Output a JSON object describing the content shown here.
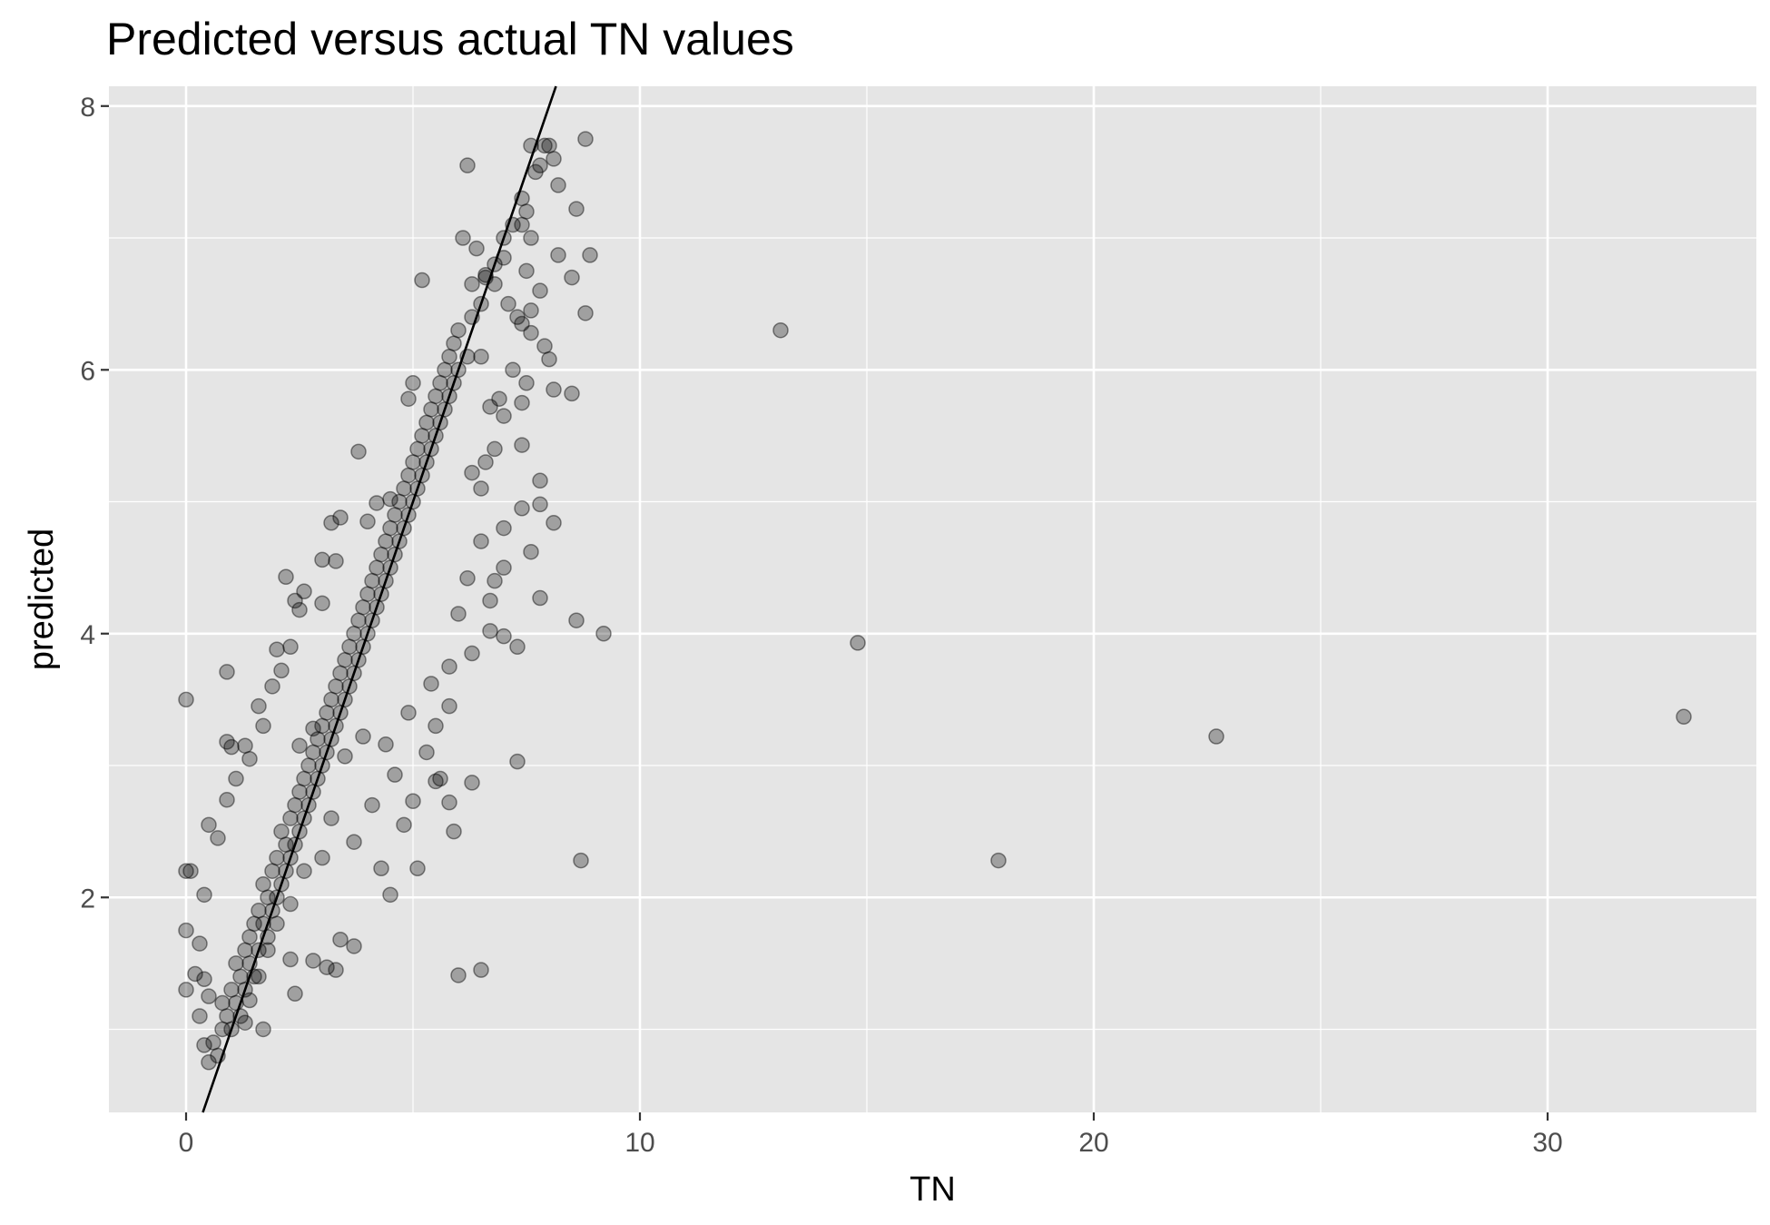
{
  "chart_data": {
    "type": "scatter",
    "title": "Predicted versus actual TN values",
    "xlabel": "TN",
    "ylabel": "predicted",
    "xlim": [
      -1.7,
      34.6
    ],
    "ylim": [
      0.37,
      8.15
    ],
    "x_ticks": [
      0,
      10,
      20,
      30
    ],
    "x_tick_labels": [
      "0",
      "10",
      "20",
      "30"
    ],
    "y_ticks": [
      2,
      4,
      6,
      8
    ],
    "y_tick_labels": [
      "2",
      "4",
      "6",
      "8"
    ],
    "x_minor_grid": [
      -5,
      5,
      15,
      25
    ],
    "y_minor_grid": [
      1,
      3,
      5,
      7
    ],
    "grid": true,
    "legend": "none",
    "colors": {
      "panel_background": "#e5e5e5",
      "gridline": "#ffffff",
      "point": "#000000",
      "reference_line": "#000000"
    },
    "point_alpha": 0.3,
    "reference_line": {
      "type": "identity",
      "points": [
        [
          0.37,
          0.37
        ],
        [
          8.15,
          8.15
        ]
      ]
    },
    "series": [
      {
        "values": [
          [
            0.6,
            0.9
          ],
          [
            0.7,
            0.8
          ],
          [
            0.8,
            1.0
          ],
          [
            0.8,
            1.2
          ],
          [
            0.9,
            1.1
          ],
          [
            1.0,
            1.0
          ],
          [
            1.0,
            1.3
          ],
          [
            1.1,
            1.2
          ],
          [
            1.1,
            1.5
          ],
          [
            1.2,
            1.1
          ],
          [
            1.2,
            1.4
          ],
          [
            1.3,
            1.3
          ],
          [
            1.3,
            1.6
          ],
          [
            1.4,
            1.5
          ],
          [
            1.4,
            1.7
          ],
          [
            1.5,
            1.4
          ],
          [
            1.5,
            1.8
          ],
          [
            1.6,
            1.6
          ],
          [
            1.6,
            1.9
          ],
          [
            1.7,
            1.8
          ],
          [
            1.7,
            2.1
          ],
          [
            1.8,
            1.7
          ],
          [
            1.8,
            2.0
          ],
          [
            1.9,
            1.9
          ],
          [
            1.9,
            2.2
          ],
          [
            2.0,
            2.0
          ],
          [
            2.0,
            2.3
          ],
          [
            2.1,
            2.1
          ],
          [
            2.1,
            2.5
          ],
          [
            2.2,
            2.2
          ],
          [
            2.2,
            2.4
          ],
          [
            2.3,
            2.3
          ],
          [
            2.3,
            2.6
          ],
          [
            2.4,
            2.4
          ],
          [
            2.4,
            2.7
          ],
          [
            2.5,
            2.5
          ],
          [
            2.5,
            2.8
          ],
          [
            2.6,
            2.6
          ],
          [
            2.6,
            2.9
          ],
          [
            2.7,
            2.7
          ],
          [
            2.7,
            3.0
          ],
          [
            2.8,
            2.8
          ],
          [
            2.8,
            3.1
          ],
          [
            2.9,
            2.9
          ],
          [
            2.9,
            3.2
          ],
          [
            3.0,
            3.0
          ],
          [
            3.0,
            3.3
          ],
          [
            3.1,
            3.1
          ],
          [
            3.1,
            3.4
          ],
          [
            3.2,
            3.2
          ],
          [
            3.2,
            3.5
          ],
          [
            3.3,
            3.3
          ],
          [
            3.3,
            3.6
          ],
          [
            3.4,
            3.4
          ],
          [
            3.4,
            3.7
          ],
          [
            3.5,
            3.5
          ],
          [
            3.5,
            3.8
          ],
          [
            3.6,
            3.6
          ],
          [
            3.6,
            3.9
          ],
          [
            3.7,
            3.7
          ],
          [
            3.7,
            4.0
          ],
          [
            3.8,
            3.8
          ],
          [
            3.8,
            4.1
          ],
          [
            3.9,
            3.9
          ],
          [
            3.9,
            4.2
          ],
          [
            4.0,
            4.0
          ],
          [
            4.0,
            4.3
          ],
          [
            4.1,
            4.1
          ],
          [
            4.1,
            4.4
          ],
          [
            4.2,
            4.2
          ],
          [
            4.2,
            4.5
          ],
          [
            4.3,
            4.3
          ],
          [
            4.3,
            4.6
          ],
          [
            4.4,
            4.4
          ],
          [
            4.4,
            4.7
          ],
          [
            4.5,
            4.5
          ],
          [
            4.5,
            4.8
          ],
          [
            4.6,
            4.6
          ],
          [
            4.6,
            4.9
          ],
          [
            4.7,
            4.7
          ],
          [
            4.7,
            5.0
          ],
          [
            4.8,
            4.8
          ],
          [
            4.8,
            5.1
          ],
          [
            4.9,
            4.9
          ],
          [
            4.9,
            5.2
          ],
          [
            5.0,
            5.0
          ],
          [
            5.0,
            5.3
          ],
          [
            5.1,
            5.1
          ],
          [
            5.1,
            5.4
          ],
          [
            5.2,
            5.2
          ],
          [
            5.2,
            5.5
          ],
          [
            5.3,
            5.3
          ],
          [
            5.3,
            5.6
          ],
          [
            5.4,
            5.4
          ],
          [
            5.4,
            5.7
          ],
          [
            5.5,
            5.5
          ],
          [
            5.5,
            5.8
          ],
          [
            5.6,
            5.6
          ],
          [
            5.6,
            5.9
          ],
          [
            5.7,
            5.7
          ],
          [
            5.7,
            6.0
          ],
          [
            5.8,
            5.8
          ],
          [
            5.8,
            6.1
          ],
          [
            5.9,
            5.9
          ],
          [
            5.9,
            6.2
          ],
          [
            6.0,
            6.0
          ],
          [
            6.0,
            6.3
          ],
          [
            6.2,
            6.1
          ],
          [
            6.3,
            6.4
          ],
          [
            6.5,
            6.5
          ],
          [
            6.6,
            6.7
          ],
          [
            6.8,
            6.8
          ],
          [
            7.0,
            7.0
          ],
          [
            7.2,
            7.1
          ],
          [
            7.4,
            7.3
          ],
          [
            7.5,
            7.2
          ],
          [
            7.7,
            7.5
          ],
          [
            7.9,
            7.7
          ],
          [
            8.1,
            7.6
          ],
          [
            8.2,
            7.4
          ],
          [
            7.6,
            7.7
          ],
          [
            8.0,
            7.7
          ],
          [
            8.8,
            7.75
          ],
          [
            6.2,
            7.55
          ],
          [
            7.8,
            7.55
          ],
          [
            8.6,
            7.22
          ],
          [
            7.4,
            7.1
          ],
          [
            7.6,
            7.0
          ],
          [
            6.1,
            7.0
          ],
          [
            6.4,
            6.92
          ],
          [
            7.0,
            6.85
          ],
          [
            8.2,
            6.87
          ],
          [
            8.9,
            6.87
          ],
          [
            7.5,
            6.75
          ],
          [
            6.6,
            6.72
          ],
          [
            8.5,
            6.7
          ],
          [
            6.8,
            6.65
          ],
          [
            6.3,
            6.65
          ],
          [
            7.8,
            6.6
          ],
          [
            7.1,
            6.5
          ],
          [
            7.6,
            6.45
          ],
          [
            8.8,
            6.43
          ],
          [
            7.3,
            6.4
          ],
          [
            7.4,
            6.35
          ],
          [
            7.6,
            6.28
          ],
          [
            7.9,
            6.18
          ],
          [
            8.0,
            6.08
          ],
          [
            6.5,
            6.1
          ],
          [
            7.2,
            6.0
          ],
          [
            7.5,
            5.9
          ],
          [
            8.1,
            5.85
          ],
          [
            8.5,
            5.82
          ],
          [
            6.9,
            5.78
          ],
          [
            7.4,
            5.75
          ],
          [
            6.7,
            5.72
          ],
          [
            7.0,
            5.65
          ],
          [
            7.4,
            5.43
          ],
          [
            6.8,
            5.4
          ],
          [
            6.6,
            5.3
          ],
          [
            6.3,
            5.22
          ],
          [
            6.5,
            5.1
          ],
          [
            7.8,
            5.16
          ],
          [
            7.4,
            4.95
          ],
          [
            7.8,
            4.98
          ],
          [
            8.1,
            4.84
          ],
          [
            7.0,
            4.8
          ],
          [
            6.5,
            4.7
          ],
          [
            7.6,
            4.62
          ],
          [
            7.0,
            4.5
          ],
          [
            6.8,
            4.4
          ],
          [
            6.2,
            4.42
          ],
          [
            7.8,
            4.27
          ],
          [
            6.7,
            4.25
          ],
          [
            6.0,
            4.15
          ],
          [
            8.6,
            4.1
          ],
          [
            9.2,
            4.0
          ],
          [
            6.7,
            4.02
          ],
          [
            7.0,
            3.98
          ],
          [
            7.3,
            3.9
          ],
          [
            6.3,
            3.85
          ],
          [
            5.8,
            3.75
          ],
          [
            5.4,
            3.62
          ],
          [
            5.8,
            3.45
          ],
          [
            5.5,
            3.3
          ],
          [
            5.3,
            3.1
          ],
          [
            5.6,
            2.9
          ],
          [
            5.5,
            2.88
          ],
          [
            5.8,
            2.72
          ],
          [
            5.9,
            2.5
          ],
          [
            6.3,
            2.87
          ],
          [
            7.3,
            3.03
          ],
          [
            8.7,
            2.28
          ],
          [
            5.1,
            2.22
          ],
          [
            6.0,
            1.41
          ],
          [
            6.5,
            1.45
          ],
          [
            5.2,
            6.68
          ],
          [
            5.0,
            5.9
          ],
          [
            4.9,
            5.78
          ],
          [
            3.8,
            5.38
          ],
          [
            4.5,
            5.02
          ],
          [
            4.2,
            4.99
          ],
          [
            3.4,
            4.88
          ],
          [
            3.2,
            4.84
          ],
          [
            4.0,
            4.85
          ],
          [
            3.0,
            4.56
          ],
          [
            2.2,
            4.43
          ],
          [
            3.3,
            4.55
          ],
          [
            2.6,
            4.32
          ],
          [
            2.4,
            4.25
          ],
          [
            3.0,
            4.23
          ],
          [
            2.5,
            4.18
          ],
          [
            2.0,
            3.88
          ],
          [
            2.3,
            3.9
          ],
          [
            2.1,
            3.72
          ],
          [
            1.9,
            3.6
          ],
          [
            1.6,
            3.45
          ],
          [
            1.7,
            3.3
          ],
          [
            1.3,
            3.15
          ],
          [
            0.9,
            3.18
          ],
          [
            1.0,
            3.14
          ],
          [
            1.1,
            2.9
          ],
          [
            0.9,
            2.74
          ],
          [
            0.5,
            2.55
          ],
          [
            0.7,
            2.45
          ],
          [
            0.0,
            2.2
          ],
          [
            0.1,
            2.2
          ],
          [
            0.4,
            2.02
          ],
          [
            0.0,
            1.75
          ],
          [
            0.3,
            1.65
          ],
          [
            0.2,
            1.42
          ],
          [
            0.4,
            1.38
          ],
          [
            0.0,
            1.3
          ],
          [
            0.5,
            1.25
          ],
          [
            0.3,
            1.1
          ],
          [
            0.4,
            0.88
          ],
          [
            0.5,
            0.75
          ],
          [
            0.0,
            3.5
          ],
          [
            0.9,
            3.71
          ],
          [
            1.4,
            3.05
          ],
          [
            2.5,
            3.15
          ],
          [
            2.8,
            3.28
          ],
          [
            3.5,
            3.07
          ],
          [
            3.2,
            2.6
          ],
          [
            3.0,
            2.3
          ],
          [
            2.6,
            2.2
          ],
          [
            2.3,
            1.95
          ],
          [
            2.0,
            1.8
          ],
          [
            1.8,
            1.6
          ],
          [
            1.6,
            1.4
          ],
          [
            1.4,
            1.22
          ],
          [
            1.3,
            1.05
          ],
          [
            1.7,
            1.0
          ],
          [
            2.4,
            1.27
          ],
          [
            3.1,
            1.47
          ],
          [
            3.3,
            1.45
          ],
          [
            3.7,
            1.63
          ],
          [
            3.4,
            1.68
          ],
          [
            2.8,
            1.52
          ],
          [
            2.3,
            1.53
          ],
          [
            4.5,
            2.02
          ],
          [
            4.3,
            2.22
          ],
          [
            4.8,
            2.55
          ],
          [
            5.0,
            2.73
          ],
          [
            4.6,
            2.93
          ],
          [
            4.4,
            3.16
          ],
          [
            4.9,
            3.4
          ],
          [
            3.9,
            3.22
          ],
          [
            4.1,
            2.7
          ],
          [
            3.7,
            2.42
          ],
          [
            13.1,
            6.3
          ],
          [
            14.8,
            3.93
          ],
          [
            22.7,
            3.22
          ],
          [
            17.9,
            2.28
          ],
          [
            33.0,
            3.37
          ]
        ]
      }
    ]
  }
}
